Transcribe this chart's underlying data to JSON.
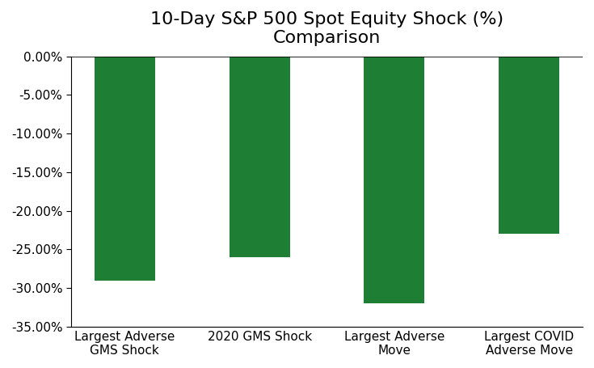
{
  "title": "10-Day S&P 500 Spot Equity Shock (%)\nComparison",
  "categories": [
    "Largest Adverse\nGMS Shock",
    "2020 GMS Shock",
    "Largest Adverse\nMove",
    "Largest COVID\nAdverse Move"
  ],
  "values": [
    -29.0,
    -26.0,
    -32.0,
    -23.0
  ],
  "bar_color": "#1e7e34",
  "ylim": [
    -35,
    0
  ],
  "yticks": [
    0,
    -5,
    -10,
    -15,
    -20,
    -25,
    -30,
    -35
  ],
  "background_color": "#ffffff",
  "title_fontsize": 16,
  "tick_fontsize": 11,
  "xlabel_fontsize": 11
}
